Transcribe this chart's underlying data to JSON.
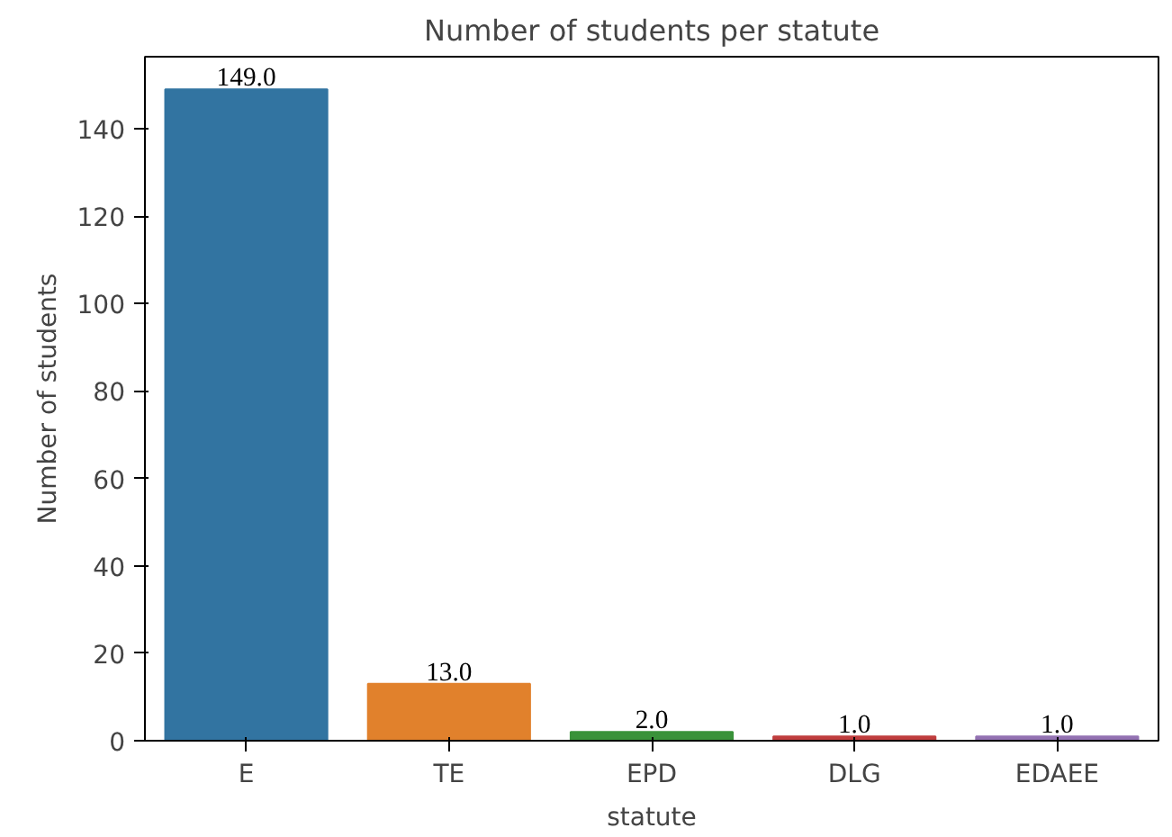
{
  "chart_data": {
    "type": "bar",
    "title": "Number of students per statute",
    "xlabel": "statute",
    "ylabel": "Number of students",
    "categories": [
      "E",
      "TE",
      "EPD",
      "DLG",
      "EDAEE"
    ],
    "values": [
      149,
      13,
      2,
      1,
      1
    ],
    "colors": [
      "#3274a1",
      "#e1812c",
      "#3a923a",
      "#c03d3e",
      "#9372b2"
    ],
    "value_labels": [
      "149.0",
      "13.0",
      "2.0",
      "1.0",
      "1.0"
    ],
    "ylim": [
      0,
      156.45
    ],
    "yticks": [
      0,
      20,
      40,
      60,
      80,
      100,
      120,
      140
    ],
    "grid": false
  }
}
